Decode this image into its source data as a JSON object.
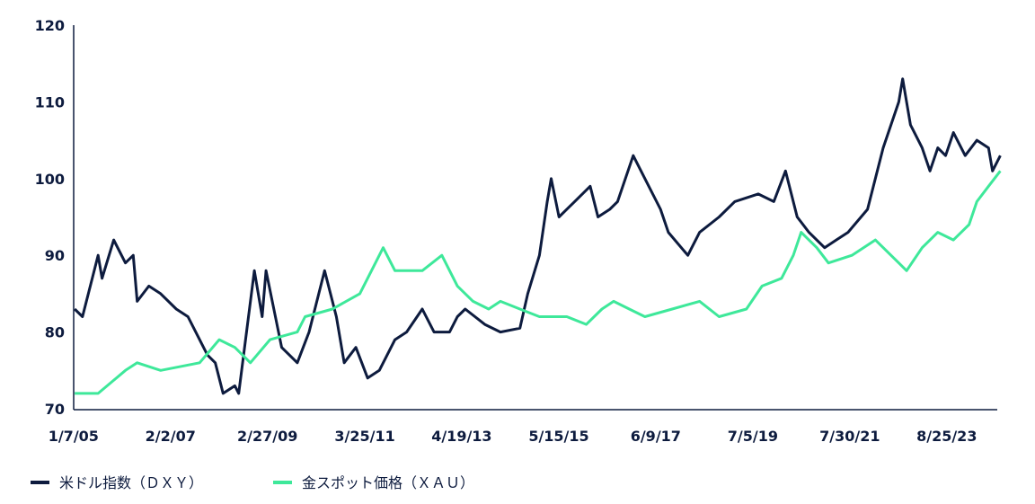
{
  "chart_data": {
    "type": "line",
    "title": "",
    "xlabel": "",
    "ylabel": "",
    "ylim": [
      70,
      120
    ],
    "y_ticks": [
      70,
      80,
      90,
      100,
      110,
      120
    ],
    "x_ticks": [
      {
        "label": "1/7/05",
        "date": "2005-01-07"
      },
      {
        "label": "2/2/07",
        "date": "2007-02-02"
      },
      {
        "label": "2/27/09",
        "date": "2009-02-27"
      },
      {
        "label": "3/25/11",
        "date": "2011-03-25"
      },
      {
        "label": "4/19/13",
        "date": "2013-04-19"
      },
      {
        "label": "5/15/15",
        "date": "2015-05-15"
      },
      {
        "label": "6/9/17",
        "date": "2017-06-09"
      },
      {
        "label": "7/5/19",
        "date": "2019-07-05"
      },
      {
        "label": "7/30/21",
        "date": "2021-07-30"
      },
      {
        "label": "8/25/23",
        "date": "2023-08-25"
      }
    ],
    "grid": false,
    "legend_position": "bottom-left",
    "series": [
      {
        "name": "米ドル指数（ＤＸＹ）",
        "color": "#0d1b3e",
        "points": [
          [
            "2005-01",
            83
          ],
          [
            "2005-03",
            82
          ],
          [
            "2005-07",
            90
          ],
          [
            "2005-08",
            87
          ],
          [
            "2005-11",
            92
          ],
          [
            "2006-02",
            89
          ],
          [
            "2006-04",
            90
          ],
          [
            "2006-05",
            84
          ],
          [
            "2006-08",
            86
          ],
          [
            "2006-11",
            85
          ],
          [
            "2007-03",
            83
          ],
          [
            "2007-06",
            82
          ],
          [
            "2007-09",
            79
          ],
          [
            "2007-11",
            77
          ],
          [
            "2008-01",
            76
          ],
          [
            "2008-03",
            72
          ],
          [
            "2008-06",
            73
          ],
          [
            "2008-07",
            72
          ],
          [
            "2008-09",
            80
          ],
          [
            "2008-11",
            88
          ],
          [
            "2009-01",
            82
          ],
          [
            "2009-02",
            88
          ],
          [
            "2009-04",
            83
          ],
          [
            "2009-06",
            78
          ],
          [
            "2009-10",
            76
          ],
          [
            "2010-01",
            80
          ],
          [
            "2010-05",
            88
          ],
          [
            "2010-08",
            82
          ],
          [
            "2010-10",
            76
          ],
          [
            "2011-01",
            78
          ],
          [
            "2011-04",
            74
          ],
          [
            "2011-07",
            75
          ],
          [
            "2011-11",
            79
          ],
          [
            "2012-02",
            80
          ],
          [
            "2012-06",
            83
          ],
          [
            "2012-09",
            80
          ],
          [
            "2013-01",
            80
          ],
          [
            "2013-03",
            82
          ],
          [
            "2013-05",
            83
          ],
          [
            "2013-10",
            81
          ],
          [
            "2014-02",
            80
          ],
          [
            "2014-07",
            80.5
          ],
          [
            "2014-09",
            85
          ],
          [
            "2014-12",
            90
          ],
          [
            "2015-02",
            97
          ],
          [
            "2015-03",
            100
          ],
          [
            "2015-05",
            95
          ],
          [
            "2015-09",
            97
          ],
          [
            "2016-01",
            99
          ],
          [
            "2016-03",
            95
          ],
          [
            "2016-06",
            96
          ],
          [
            "2016-08",
            97
          ],
          [
            "2016-12",
            103
          ],
          [
            "2017-03",
            100
          ],
          [
            "2017-07",
            96
          ],
          [
            "2017-09",
            93
          ],
          [
            "2018-02",
            90
          ],
          [
            "2018-05",
            93
          ],
          [
            "2018-10",
            95
          ],
          [
            "2019-02",
            97
          ],
          [
            "2019-08",
            98
          ],
          [
            "2019-12",
            97
          ],
          [
            "2020-03",
            101
          ],
          [
            "2020-06",
            95
          ],
          [
            "2020-09",
            93
          ],
          [
            "2021-01",
            91
          ],
          [
            "2021-04",
            92
          ],
          [
            "2021-07",
            93
          ],
          [
            "2021-12",
            96
          ],
          [
            "2022-04",
            104
          ],
          [
            "2022-08",
            110
          ],
          [
            "2022-09",
            113
          ],
          [
            "2022-11",
            107
          ],
          [
            "2023-02",
            104
          ],
          [
            "2023-04",
            101
          ],
          [
            "2023-06",
            104
          ],
          [
            "2023-08",
            103
          ],
          [
            "2023-10",
            106
          ],
          [
            "2024-01",
            103
          ],
          [
            "2024-04",
            105
          ],
          [
            "2024-07",
            104
          ],
          [
            "2024-08",
            101
          ],
          [
            "2024-10",
            103
          ]
        ]
      },
      {
        "name": "金スポット価格（ＸＡＵ）",
        "color": "#3ee89a",
        "points": [
          [
            "2005-01",
            72
          ],
          [
            "2005-07",
            72
          ],
          [
            "2006-02",
            75
          ],
          [
            "2006-05",
            76
          ],
          [
            "2006-11",
            75
          ],
          [
            "2007-09",
            76
          ],
          [
            "2008-02",
            79
          ],
          [
            "2008-06",
            78
          ],
          [
            "2008-10",
            76
          ],
          [
            "2009-03",
            79
          ],
          [
            "2009-10",
            80
          ],
          [
            "2009-12",
            82
          ],
          [
            "2010-07",
            83
          ],
          [
            "2011-02",
            85
          ],
          [
            "2011-08",
            91
          ],
          [
            "2011-11",
            88
          ],
          [
            "2012-06",
            88
          ],
          [
            "2012-11",
            90
          ],
          [
            "2013-03",
            86
          ],
          [
            "2013-07",
            84
          ],
          [
            "2013-11",
            83
          ],
          [
            "2014-02",
            84
          ],
          [
            "2014-07",
            83
          ],
          [
            "2014-12",
            82
          ],
          [
            "2015-07",
            82
          ],
          [
            "2015-12",
            81
          ],
          [
            "2016-04",
            83
          ],
          [
            "2016-07",
            84
          ],
          [
            "2016-11",
            83
          ],
          [
            "2017-03",
            82
          ],
          [
            "2017-10",
            83
          ],
          [
            "2018-05",
            84
          ],
          [
            "2018-10",
            82
          ],
          [
            "2019-05",
            83
          ],
          [
            "2019-09",
            86
          ],
          [
            "2020-02",
            87
          ],
          [
            "2020-05",
            90
          ],
          [
            "2020-07",
            93
          ],
          [
            "2020-11",
            91
          ],
          [
            "2021-02",
            89
          ],
          [
            "2021-08",
            90
          ],
          [
            "2022-02",
            92
          ],
          [
            "2022-08",
            89
          ],
          [
            "2022-10",
            88
          ],
          [
            "2023-02",
            91
          ],
          [
            "2023-06",
            93
          ],
          [
            "2023-10",
            92
          ],
          [
            "2024-02",
            94
          ],
          [
            "2024-04",
            97
          ],
          [
            "2024-07",
            99
          ],
          [
            "2024-10",
            101
          ]
        ]
      }
    ]
  }
}
